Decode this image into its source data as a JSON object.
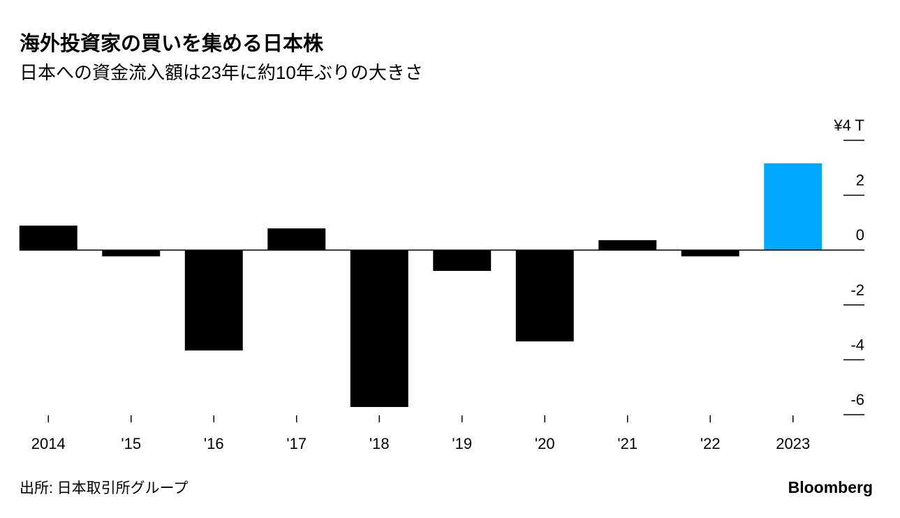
{
  "chart_data": {
    "type": "bar",
    "title": "海外投資家の買いを集める日本株",
    "subtitle": "日本への資金流入額は23年に約10年ぶりの大きさ",
    "categories": [
      "2014",
      "'15",
      "'16",
      "'17",
      "'18",
      "'19",
      "'20",
      "'21",
      "'22",
      "2023"
    ],
    "values": [
      0.89,
      -0.23,
      -3.66,
      0.79,
      -5.72,
      -0.76,
      -3.33,
      0.36,
      -0.23,
      3.16
    ],
    "colors": [
      "#000000",
      "#000000",
      "#000000",
      "#000000",
      "#000000",
      "#000000",
      "#000000",
      "#000000",
      "#000000",
      "#00a8ff"
    ],
    "ylim": [
      -6,
      4
    ],
    "yticks": [
      {
        "value": 4,
        "label": "¥4 T"
      },
      2,
      0,
      -2,
      -4,
      -6
    ],
    "source": "出所: 日本取引所グループ",
    "brand": "Bloomberg"
  }
}
